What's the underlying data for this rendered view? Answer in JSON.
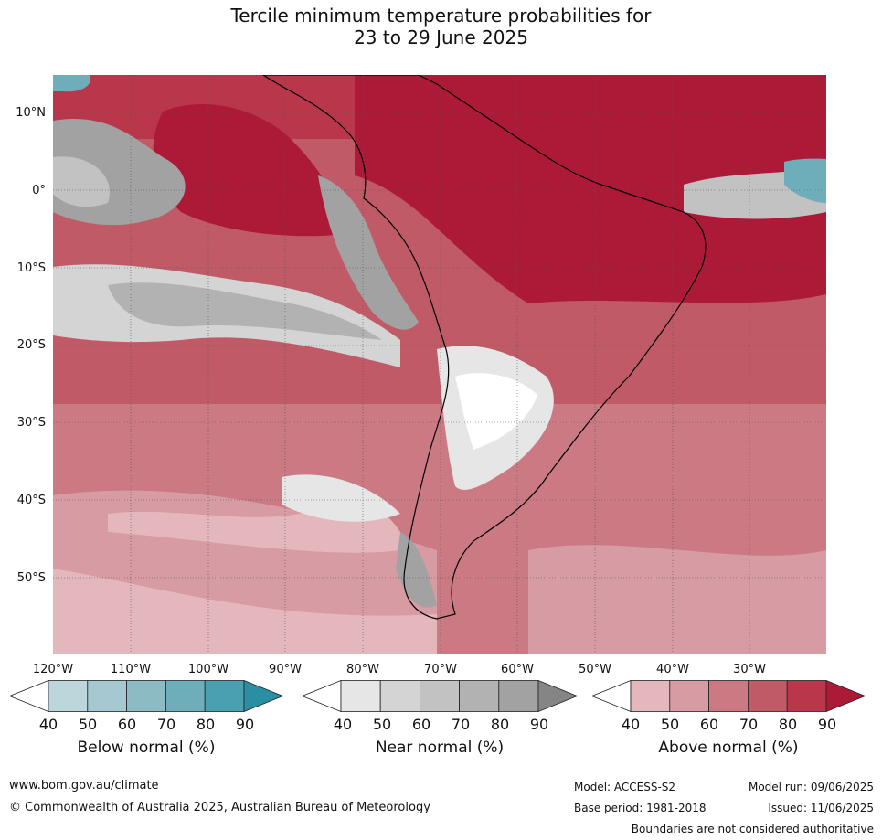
{
  "title_line1": "Tercile minimum temperature probabilities for",
  "title_line2": "23 to 29 June 2025",
  "lat_labels": [
    "10°N",
    "0°",
    "10°S",
    "20°S",
    "30°S",
    "40°S",
    "50°S"
  ],
  "lon_labels": [
    "120°W",
    "110°W",
    "100°W",
    "90°W",
    "80°W",
    "70°W",
    "60°W",
    "50°W",
    "40°W",
    "30°W"
  ],
  "colorbars": [
    {
      "label": "Below normal (%)",
      "ticks": [
        "40",
        "50",
        "60",
        "70",
        "80",
        "90"
      ],
      "colors": [
        "#ffffff",
        "#bcd6dc",
        "#a6c8d0",
        "#8dbbc4",
        "#6eaebb",
        "#4a9fb0",
        "#2b8fa4"
      ]
    },
    {
      "label": "Near normal (%)",
      "ticks": [
        "40",
        "50",
        "60",
        "70",
        "80",
        "90"
      ],
      "colors": [
        "#ffffff",
        "#e6e6e6",
        "#d4d4d4",
        "#c2c2c2",
        "#b2b2b2",
        "#a2a2a2",
        "#858585"
      ]
    },
    {
      "label": "Above normal (%)",
      "ticks": [
        "40",
        "50",
        "60",
        "70",
        "80",
        "90"
      ],
      "colors": [
        "#ffffff",
        "#e4b7bd",
        "#d69ba3",
        "#cb7983",
        "#c15a67",
        "#b9364b",
        "#ad1a38"
      ]
    }
  ],
  "footer": {
    "website": "www.bom.gov.au/climate",
    "copyright": "© Commonwealth of Australia 2025, Australian Bureau of Meteorology",
    "model": "Model: ACCESS-S2",
    "model_run": "Model run: 09/06/2025",
    "base_period": "Base period: 1981-2018",
    "issued": "Issued: 11/06/2025",
    "disclaimer": "Boundaries are not considered authoritative"
  }
}
